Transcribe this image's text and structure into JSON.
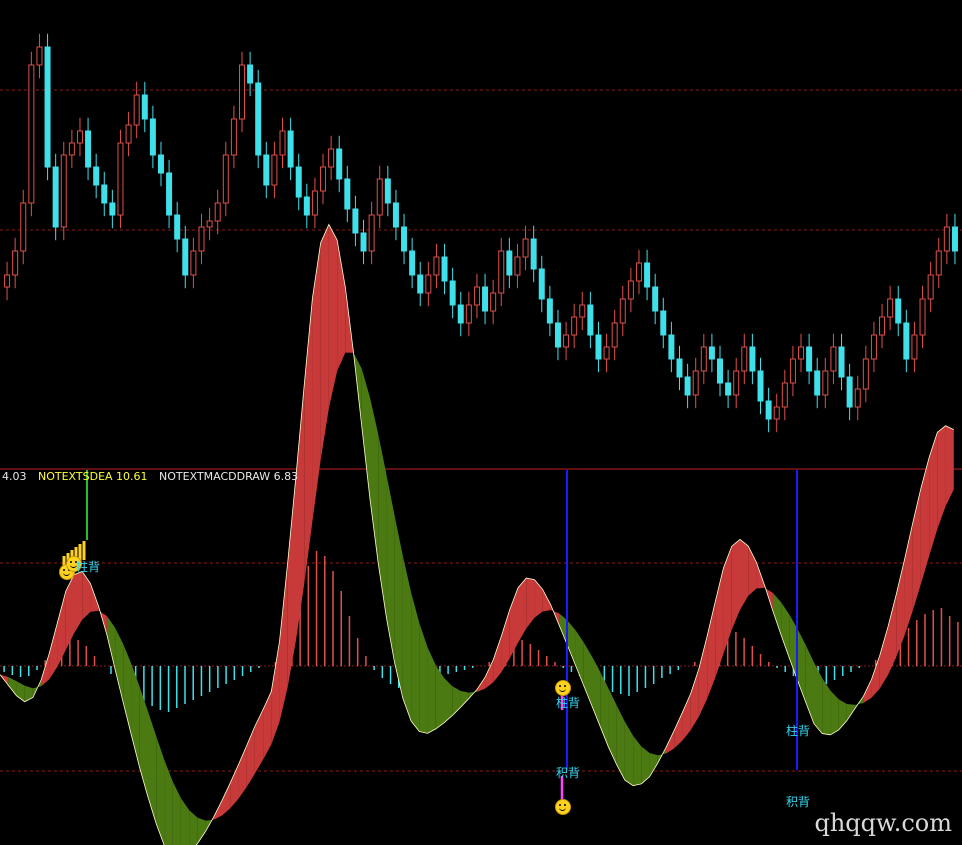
{
  "legend": {
    "item0": {
      "text": "4.03",
      "color": "#e8e8e8"
    },
    "item1": {
      "text": "NOTEXTSDEA 10.61",
      "color": "#ffff33"
    },
    "item2": {
      "text": "NOTEXTMACDDRAW 6.83",
      "color": "#e8e8e8"
    }
  },
  "markers": {
    "m1": "柱背",
    "m2": "柱背",
    "m3": "积背",
    "m4": "柱背",
    "m5": "积背"
  },
  "watermark": "qhqqw.com",
  "colors": {
    "bull": "#e0504b",
    "bear": "#3fe0ea",
    "band_red": "#c83a3a",
    "band_green": "#4c7a12",
    "dif_line": "#ffffcc",
    "grid": "#8b1a1a",
    "vline": "#1a1aff"
  },
  "chart_data": [
    {
      "type": "candlestick",
      "close": [
        100,
        104,
        112,
        135,
        138,
        118,
        108,
        120,
        122,
        124,
        118,
        115,
        112,
        110,
        122,
        125,
        130,
        126,
        120,
        117,
        110,
        106,
        100,
        104,
        108,
        109,
        112,
        120,
        126,
        135,
        132,
        120,
        115,
        120,
        124,
        118,
        113,
        110,
        114,
        118,
        121,
        116,
        111,
        107,
        104,
        110,
        116,
        112,
        108,
        104,
        100,
        97,
        100,
        103,
        99,
        95,
        92,
        95,
        98,
        94,
        97,
        104,
        100,
        103,
        106,
        101,
        96,
        92,
        88,
        90,
        93,
        95,
        90,
        86,
        88,
        92,
        96,
        99,
        102,
        98,
        94,
        90,
        86,
        83,
        80,
        84,
        88,
        86,
        82,
        80,
        84,
        88,
        84,
        79,
        76,
        78,
        82,
        86,
        88,
        84,
        80,
        84,
        88,
        83,
        78,
        81,
        86,
        90,
        93,
        96,
        92,
        86,
        90,
        96,
        100,
        104,
        108,
        104
      ]
    },
    {
      "type": "macd_histogram",
      "values": [
        -6,
        -9,
        -11,
        -10,
        -4,
        6,
        16,
        24,
        30,
        26,
        20,
        10,
        0,
        -8,
        -18,
        -24,
        -30,
        -36,
        -40,
        -44,
        -46,
        -42,
        -38,
        -34,
        -30,
        -26,
        -22,
        -18,
        -14,
        -10,
        -6,
        -2,
        0,
        4,
        30,
        60,
        80,
        100,
        115,
        110,
        95,
        75,
        50,
        28,
        10,
        -4,
        -12,
        -18,
        -22,
        -24,
        -22,
        -18,
        -14,
        -10,
        -8,
        -6,
        -4,
        -2,
        0,
        4,
        10,
        18,
        24,
        26,
        22,
        16,
        10,
        4,
        -2,
        -6,
        -10,
        -14,
        -18,
        -22,
        -26,
        -28,
        -30,
        -26,
        -22,
        -18,
        -12,
        -8,
        -4,
        0,
        4,
        12,
        22,
        30,
        36,
        34,
        28,
        20,
        12,
        4,
        -2,
        -6,
        -10,
        -14,
        -18,
        -22,
        -18,
        -14,
        -10,
        -6,
        -2,
        0,
        6,
        14,
        22,
        30,
        38,
        46,
        52,
        56,
        58,
        50,
        44
      ]
    }
  ]
}
